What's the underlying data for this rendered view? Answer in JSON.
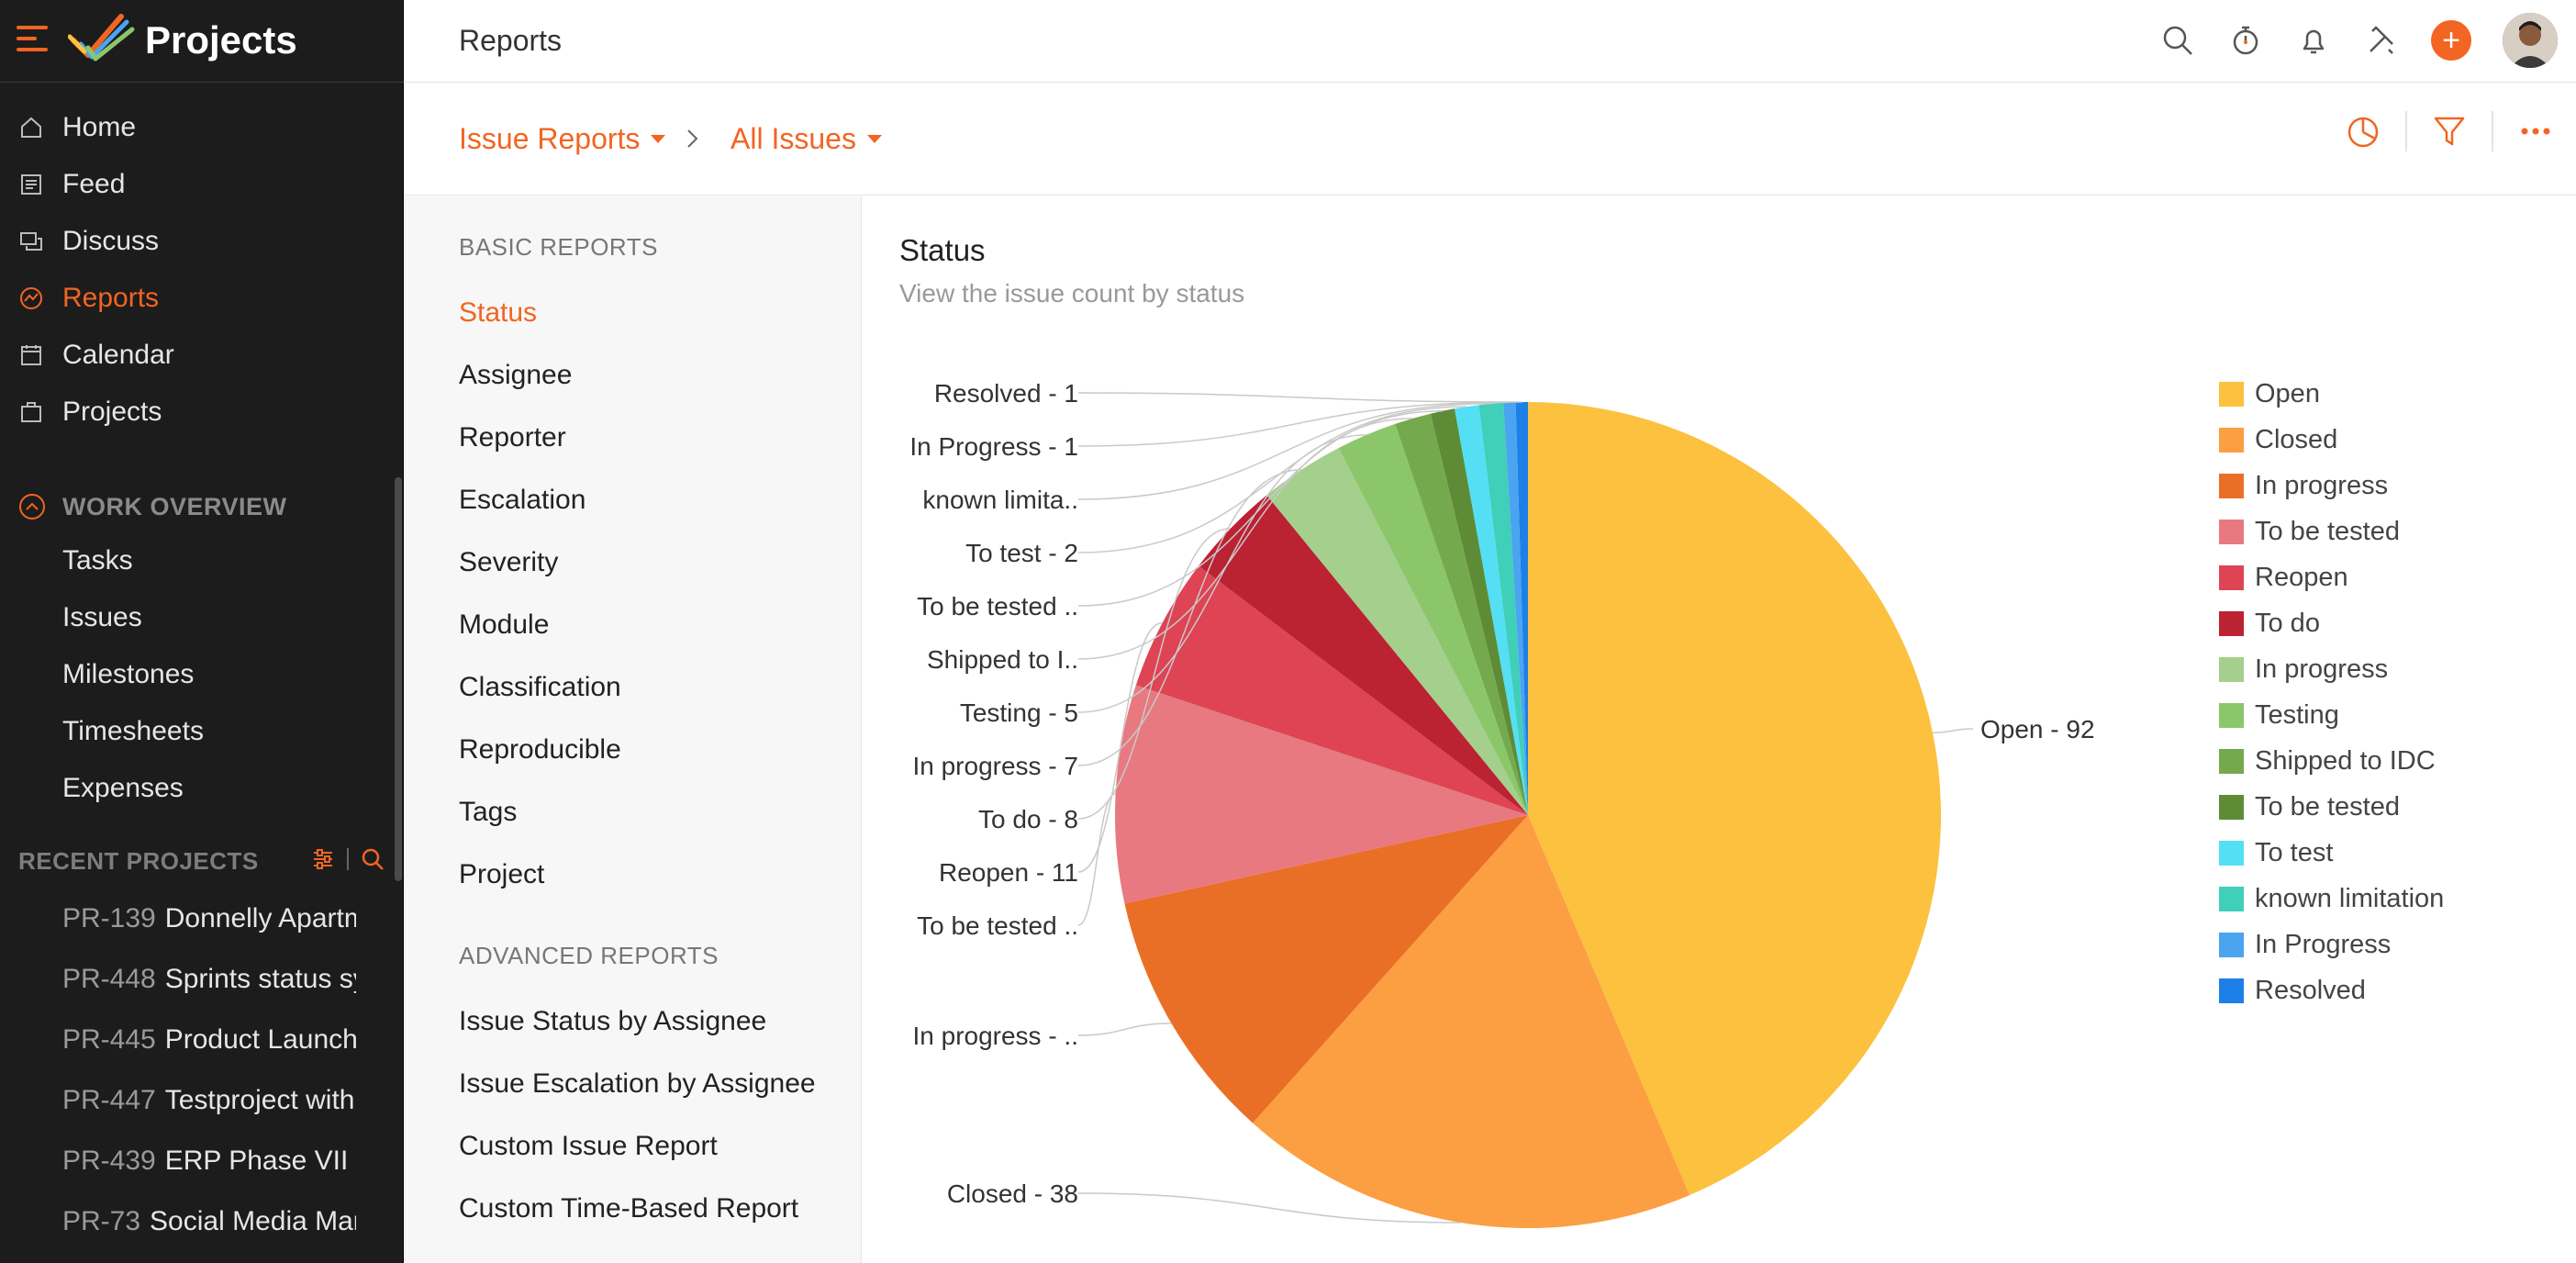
{
  "app": {
    "title": "Projects"
  },
  "sidebar": {
    "nav": [
      {
        "label": "Home",
        "icon": "home-icon"
      },
      {
        "label": "Feed",
        "icon": "feed-icon"
      },
      {
        "label": "Discuss",
        "icon": "discuss-icon"
      },
      {
        "label": "Reports",
        "icon": "reports-icon",
        "active": true
      },
      {
        "label": "Calendar",
        "icon": "calendar-icon"
      },
      {
        "label": "Projects",
        "icon": "projects-icon"
      }
    ],
    "work_overview": {
      "label": "WORK OVERVIEW",
      "items": [
        "Tasks",
        "Issues",
        "Milestones",
        "Timesheets",
        "Expenses"
      ]
    },
    "recent_projects": {
      "label": "RECENT PROJECTS",
      "items": [
        {
          "code": "PR-139",
          "name": "Donnelly Apartments"
        },
        {
          "code": "PR-448",
          "name": "Sprints status sync"
        },
        {
          "code": "PR-445",
          "name": "Product Launch"
        },
        {
          "code": "PR-447",
          "name": "Testproject with"
        },
        {
          "code": "PR-439",
          "name": "ERP Phase VII"
        },
        {
          "code": "PR-73",
          "name": "Social Media Marketing"
        }
      ]
    }
  },
  "topbar": {
    "title": "Reports"
  },
  "subbar": {
    "crumb1": "Issue Reports",
    "crumb2": "All Issues"
  },
  "report_menu": {
    "basic_label": "BASIC REPORTS",
    "basic": [
      "Status",
      "Assignee",
      "Reporter",
      "Escalation",
      "Severity",
      "Module",
      "Classification",
      "Reproducible",
      "Tags",
      "Project"
    ],
    "advanced_label": "ADVANCED REPORTS",
    "advanced": [
      "Issue Status by Assignee",
      "Issue Escalation by Assignee",
      "Custom Issue Report",
      "Custom Time-Based Report"
    ]
  },
  "chart_header": {
    "title": "Status",
    "subtitle": "View the issue count by status"
  },
  "chart_data": {
    "type": "pie",
    "title": "Status",
    "subtitle": "View the issue count by status",
    "legend_position": "right",
    "slices": [
      {
        "name": "Open",
        "value": 92,
        "color": "#fcc13e",
        "label": "Open - 92"
      },
      {
        "name": "Closed",
        "value": 38,
        "color": "#fc9e42",
        "label": "Closed - 38"
      },
      {
        "name": "In progress",
        "value": 21,
        "color": "#ea6f26",
        "label": "In progress - .."
      },
      {
        "name": "To be tested",
        "value": 18,
        "color": "#e87981",
        "label": "To be tested .."
      },
      {
        "name": "Reopen",
        "value": 11,
        "color": "#de4454",
        "label": "Reopen - 11"
      },
      {
        "name": "To do",
        "value": 8,
        "color": "#bb2232",
        "label": "To do - 8"
      },
      {
        "name": "In progress",
        "value": 7,
        "color": "#a4cf8c",
        "label": "In progress - 7"
      },
      {
        "name": "Testing",
        "value": 5,
        "color": "#8cc66b",
        "label": "Testing - 5"
      },
      {
        "name": "Shipped to IDC",
        "value": 3,
        "color": "#74aa4d",
        "label": "Shipped to I.."
      },
      {
        "name": "To be tested",
        "value": 2,
        "color": "#5e8c36",
        "label": "To be tested .."
      },
      {
        "name": "To test",
        "value": 2,
        "color": "#54dff5",
        "label": "To test - 2"
      },
      {
        "name": "known limitation",
        "value": 2,
        "color": "#40cfb8",
        "label": "known limita.."
      },
      {
        "name": "In Progress",
        "value": 1,
        "color": "#4aa4f0",
        "label": "In Progress - 1"
      },
      {
        "name": "Resolved",
        "value": 1,
        "color": "#1d80e8",
        "label": "Resolved - 1"
      }
    ]
  }
}
